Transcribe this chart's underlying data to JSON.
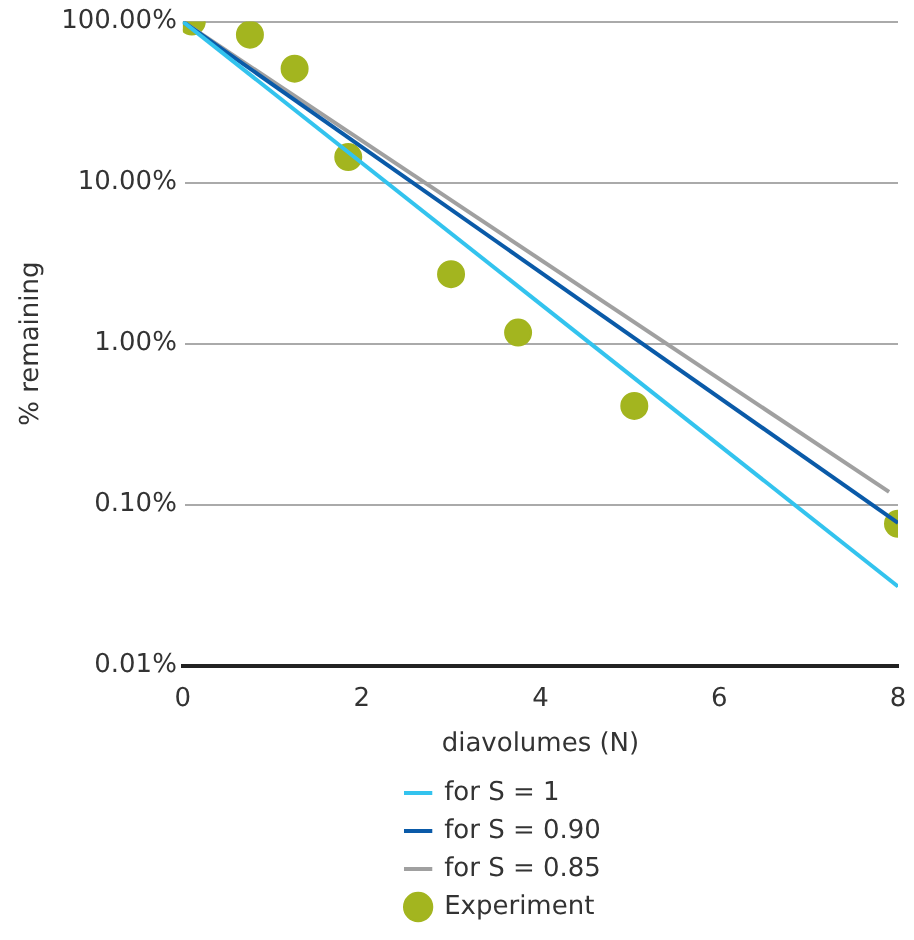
{
  "chart_data": {
    "type": "line",
    "xlabel": "diavolumes (N)",
    "ylabel": "% remaining",
    "log": "y",
    "grid": "y",
    "legend": "bottom",
    "xlim": [
      0,
      8
    ],
    "xticks": [
      0,
      2,
      4,
      6,
      8
    ],
    "ylim": [
      0.01,
      100
    ],
    "yticks": [
      {
        "value": 0.01,
        "label": "0.01%"
      },
      {
        "value": 0.1,
        "label": "0.10%"
      },
      {
        "value": 1,
        "label": "1.00%"
      },
      {
        "value": 10,
        "label": "10.00%"
      },
      {
        "value": 100,
        "label": "100.00%"
      }
    ],
    "series": [
      {
        "name": "Experiment",
        "type": "scatter",
        "marker": "circle",
        "color": "#a3b51f",
        "x": [
          0.1,
          0.75,
          1.25,
          1.85,
          3.0,
          3.75,
          5.05,
          8.0
        ],
        "values": [
          100,
          83,
          51,
          14.4,
          2.7,
          1.17,
          0.41,
          0.076
        ]
      },
      {
        "name": "for S = 1",
        "type": "line",
        "marker": "none",
        "color": "#33c3ee",
        "x": [
          0,
          8
        ],
        "values": [
          100,
          0.031
        ]
      },
      {
        "name": "for S = 0.90",
        "type": "line",
        "marker": "none",
        "color": "#0a5aa8",
        "x": [
          0,
          8
        ],
        "values": [
          100,
          0.077
        ]
      },
      {
        "name": "for S = 0.85",
        "type": "line",
        "marker": "none",
        "color": "#a0a0a0",
        "x": [
          0,
          7.9
        ],
        "values": [
          100,
          0.12
        ]
      }
    ]
  }
}
